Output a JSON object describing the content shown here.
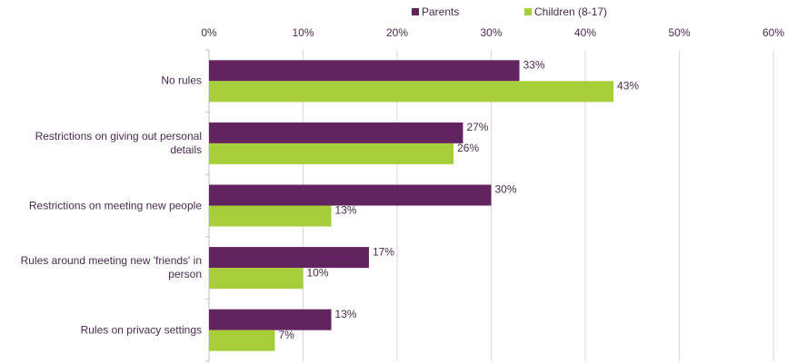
{
  "chart_data": {
    "type": "hbar",
    "categories": [
      "No rules",
      "Restrictions on giving out personal details",
      "Restrictions on meeting new  people",
      "Rules around meeting new  'friends' in person",
      "Rules on privacy settings"
    ],
    "series": [
      {
        "name": "Parents",
        "color": "#62245e",
        "values": [
          33,
          27,
          30,
          17,
          13
        ],
        "value_labels": [
          "33%",
          "27%",
          "30%",
          "17%",
          "13%"
        ]
      },
      {
        "name": "Children (8-17)",
        "color": "#a6ce39",
        "values": [
          43,
          26,
          13,
          10,
          7
        ],
        "value_labels": [
          "43%",
          "26%",
          "13%",
          "10%",
          "7%"
        ]
      }
    ],
    "xlim": [
      0,
      60
    ],
    "xticks": [
      {
        "value": 0,
        "label": "0%"
      },
      {
        "value": 10,
        "label": "10%"
      },
      {
        "value": 20,
        "label": "20%"
      },
      {
        "value": 30,
        "label": "30%"
      },
      {
        "value": 40,
        "label": "40%"
      },
      {
        "value": 50,
        "label": "50%"
      },
      {
        "value": 60,
        "label": "60%"
      }
    ],
    "grid": true,
    "legend": "top"
  }
}
